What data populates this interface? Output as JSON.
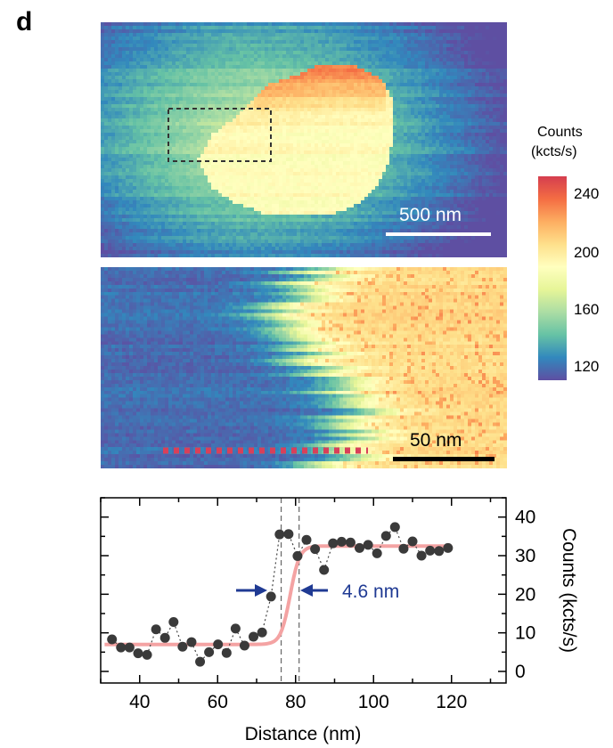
{
  "panel_label": "d",
  "top_image": {
    "scalebar_label": "500 nm"
  },
  "middle_image": {
    "scalebar_label": "50 nm"
  },
  "colorbar": {
    "title_line1": "Counts",
    "title_line2": "(kcts/s)",
    "ticks": [
      "240",
      "200",
      "160",
      "120"
    ],
    "tick_values": [
      240,
      200,
      160,
      120
    ],
    "range": [
      108,
      252
    ],
    "colors": [
      "#5e4fa2",
      "#3288bd",
      "#66c2a5",
      "#abdda4",
      "#e6f598",
      "#ffffbf",
      "#fee08b",
      "#fdae61",
      "#f46d43",
      "#d53e4f"
    ]
  },
  "chart_data": {
    "type": "scatter",
    "xlabel": "Distance (nm)",
    "ylabel": "Counts (kcts/s)",
    "xlim": [
      30,
      134
    ],
    "ylim": [
      -3,
      45
    ],
    "xticks": [
      40,
      60,
      80,
      100,
      120
    ],
    "yticks": [
      0,
      10,
      20,
      30,
      40
    ],
    "annotation": "4.6 nm",
    "vlines": [
      76.3,
      80.9
    ],
    "series": [
      {
        "points": [
          [
            32.9,
            8.3
          ],
          [
            35.2,
            6.2
          ],
          [
            37.4,
            6.2
          ],
          [
            39.6,
            4.7
          ],
          [
            41.9,
            4.3
          ],
          [
            44.2,
            10.9
          ],
          [
            46.5,
            8.7
          ],
          [
            48.7,
            12.8
          ],
          [
            51.0,
            6.4
          ],
          [
            53.3,
            7.6
          ],
          [
            55.5,
            2.5
          ],
          [
            57.8,
            5.0
          ],
          [
            60.1,
            7.0
          ],
          [
            62.3,
            4.8
          ],
          [
            64.6,
            11.1
          ],
          [
            66.9,
            6.7
          ],
          [
            69.2,
            9.0
          ],
          [
            71.4,
            10.1
          ],
          [
            73.7,
            19.4
          ],
          [
            75.9,
            35.5
          ],
          [
            78.2,
            35.6
          ],
          [
            80.5,
            29.9
          ],
          [
            82.8,
            34.1
          ],
          [
            85.0,
            31.7
          ],
          [
            87.3,
            26.3
          ],
          [
            89.6,
            33.2
          ],
          [
            91.8,
            33.6
          ],
          [
            94.1,
            33.4
          ],
          [
            96.4,
            32.0
          ],
          [
            98.6,
            32.8
          ],
          [
            100.9,
            30.6
          ],
          [
            103.2,
            35.1
          ],
          [
            105.5,
            37.4
          ],
          [
            107.7,
            31.8
          ],
          [
            110.0,
            33.7
          ],
          [
            112.3,
            30.0
          ],
          [
            114.5,
            31.3
          ],
          [
            116.8,
            31.2
          ],
          [
            119.1,
            32.0
          ]
        ]
      },
      {
        "fit_step": {
          "low": 7.0,
          "high": 32.5,
          "center": 78.6,
          "width": 1.2
        }
      }
    ]
  }
}
